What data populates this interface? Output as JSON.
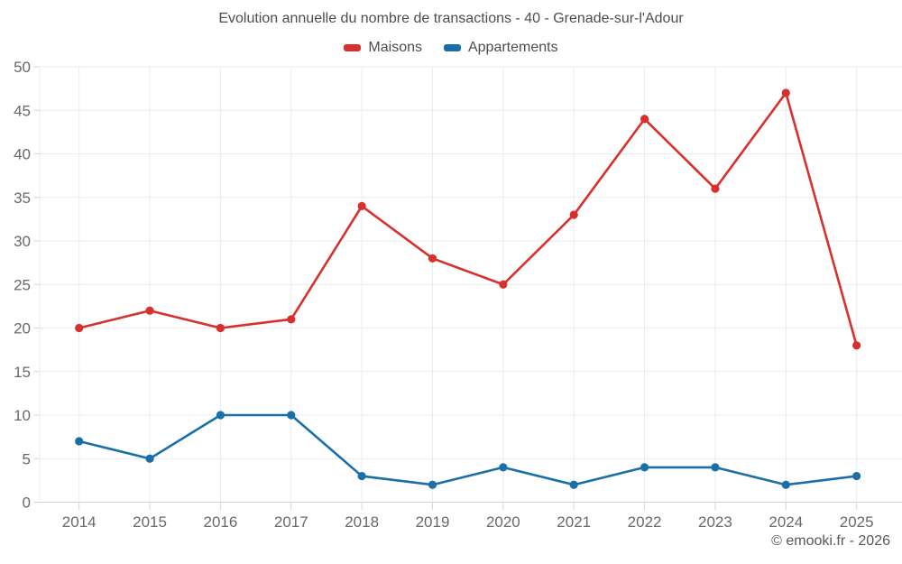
{
  "chart_data": {
    "type": "line",
    "title": "Evolution annuelle du nombre de transactions - 40 - Grenade-sur-l'Adour",
    "categories": [
      "2014",
      "2015",
      "2016",
      "2017",
      "2018",
      "2019",
      "2020",
      "2021",
      "2022",
      "2023",
      "2024",
      "2025"
    ],
    "series": [
      {
        "name": "Maisons",
        "color": "#d8302c",
        "values": [
          20,
          22,
          20,
          21,
          34,
          28,
          25,
          33,
          44,
          36,
          47,
          18
        ]
      },
      {
        "name": "Appartements",
        "color": "#1a6fa8",
        "values": [
          7,
          5,
          10,
          10,
          3,
          2,
          4,
          2,
          4,
          4,
          2,
          3
        ]
      }
    ],
    "xlabel": "",
    "ylabel": "",
    "ylim": [
      0,
      50
    ],
    "ytick_step": 5,
    "grid": true,
    "legend_position": "top",
    "marker": "circle"
  },
  "colors": {
    "background": "#ffffff",
    "gridline": "#ebebeb",
    "axis_line": "#cfd0d0",
    "tick": "#d4d4d4",
    "axis_label_text": "#69696b",
    "title_text": "#4d4d4d"
  },
  "footer": {
    "credit": "© emooki.fr - 2026"
  }
}
